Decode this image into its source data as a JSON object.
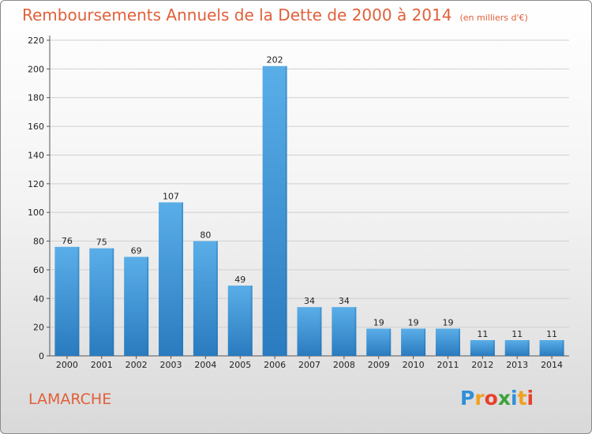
{
  "header": {
    "title": "Remboursements Annuels de la Dette de 2000 à 2014",
    "subtitle": "(en milliers d'€)"
  },
  "footer": {
    "commune": "LAMARCHE",
    "brand": "Proxiti",
    "brand_letters": [
      {
        "ch": "P",
        "color": "#2f8fd8"
      },
      {
        "ch": "r",
        "color": "#f0a020"
      },
      {
        "ch": "o",
        "color": "#e8402a"
      },
      {
        "ch": "x",
        "color": "#3aa33a"
      },
      {
        "ch": "i",
        "color": "#2f8fd8"
      },
      {
        "ch": "t",
        "color": "#f0a020"
      },
      {
        "ch": "i",
        "color": "#e8402a"
      }
    ]
  },
  "colors": {
    "title": "#e0603a",
    "bar_top": "#5aaee8",
    "bar_bottom": "#2a7bbf",
    "grid": "#d0d0d0"
  },
  "chart_data": {
    "type": "bar",
    "title": "Remboursements Annuels de la Dette de 2000 à 2014",
    "subtitle": "(en milliers d'€)",
    "xlabel": "",
    "ylabel": "",
    "ylim": [
      0,
      220
    ],
    "yticks": [
      0,
      20,
      40,
      60,
      80,
      100,
      120,
      140,
      160,
      180,
      200,
      220
    ],
    "grid": true,
    "categories": [
      "2000",
      "2001",
      "2002",
      "2003",
      "2004",
      "2005",
      "2006",
      "2007",
      "2008",
      "2009",
      "2010",
      "2011",
      "2012",
      "2013",
      "2014"
    ],
    "values": [
      76,
      75,
      69,
      107,
      80,
      49,
      202,
      34,
      34,
      19,
      19,
      19,
      11,
      11,
      11
    ]
  }
}
